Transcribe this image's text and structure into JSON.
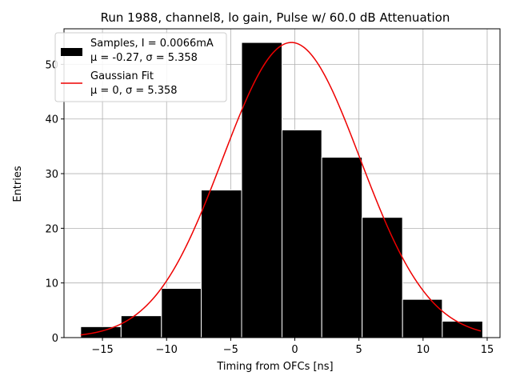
{
  "chart_data": {
    "type": "bar",
    "title": "Run 1988, channel8, lo gain, Pulse w/ 60.0 dB Attenuation",
    "xlabel": "Timing from OFCs [ns]",
    "ylabel": "Entries",
    "xlim": [
      -18,
      16
    ],
    "ylim": [
      0,
      56.5
    ],
    "grid": true,
    "xticks": [
      -15,
      -10,
      -5,
      0,
      5,
      10,
      15
    ],
    "xtick_labels": [
      "−15",
      "−10",
      "−5",
      "0",
      "5",
      "10",
      "15"
    ],
    "yticks": [
      0,
      10,
      20,
      30,
      40,
      50
    ],
    "ytick_labels": [
      "0",
      "10",
      "20",
      "30",
      "40",
      "50"
    ],
    "histogram": {
      "name": "Samples",
      "color": "#000000",
      "edge_color": "#ffffff",
      "bins": [
        {
          "left": -16.7,
          "right": -13.55,
          "value": 2
        },
        {
          "left": -13.55,
          "right": -10.4,
          "value": 4
        },
        {
          "left": -10.4,
          "right": -7.3,
          "value": 9
        },
        {
          "left": -7.3,
          "right": -4.15,
          "value": 27
        },
        {
          "left": -4.15,
          "right": -1.0,
          "value": 54
        },
        {
          "left": -1.0,
          "right": 2.1,
          "value": 38
        },
        {
          "left": 2.1,
          "right": 5.25,
          "value": 33
        },
        {
          "left": 5.25,
          "right": 8.4,
          "value": 22
        },
        {
          "left": 8.4,
          "right": 11.5,
          "value": 7
        },
        {
          "left": 11.5,
          "right": 14.65,
          "value": 3
        }
      ]
    },
    "fit": {
      "name": "Gaussian Fit",
      "color": "#ee0000",
      "amplitude": 54,
      "mean": -0.27,
      "sigma": 5.358,
      "x_start": -16.7,
      "x_end": 14.5
    },
    "legend": {
      "placement": "top-left",
      "entries": [
        {
          "kind": "patch",
          "line1": "Samples, I = 0.0066mA",
          "line2": "μ = -0.27, σ = 5.358"
        },
        {
          "kind": "line",
          "line1": "Gaussian Fit",
          "line2": "μ = 0, σ = 5.358"
        }
      ]
    }
  }
}
